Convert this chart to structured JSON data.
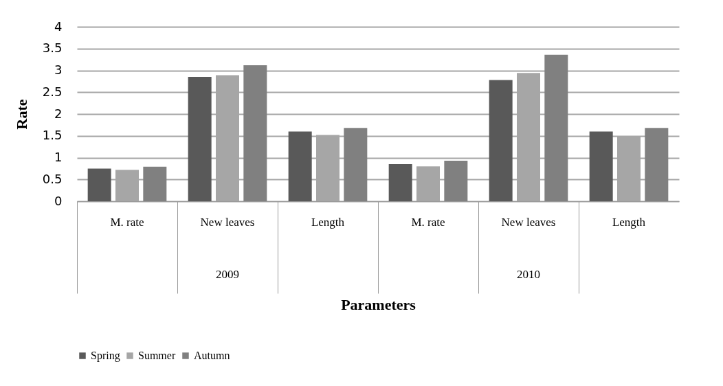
{
  "chart_data": {
    "type": "bar",
    "xlabel": "Parameters",
    "ylabel": "Rate",
    "categories": [
      "M. rate",
      "New leaves",
      "Length",
      "M. rate",
      "New leaves",
      "Length"
    ],
    "series": [
      {
        "name": "Spring",
        "color": "#595959",
        "values": [
          0.75,
          2.85,
          1.6,
          0.85,
          2.78,
          1.6
        ]
      },
      {
        "name": "Summer",
        "color": "#a6a6a6",
        "values": [
          0.72,
          2.89,
          1.52,
          0.8,
          2.94,
          1.49
        ]
      },
      {
        "name": "Autumn",
        "color": "#808080",
        "values": [
          0.79,
          3.12,
          1.68,
          0.93,
          3.36,
          1.68
        ]
      }
    ],
    "annotations": [
      "2009",
      "2010"
    ],
    "ylim": [
      0,
      4
    ],
    "yticks": [
      0,
      0.5,
      1,
      1.5,
      2,
      2.5,
      3,
      3.5,
      4
    ],
    "grid": "y",
    "legend": "bottom"
  }
}
